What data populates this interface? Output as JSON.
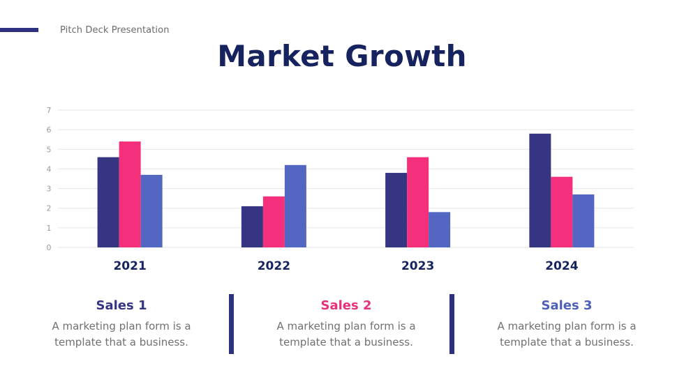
{
  "header": {
    "subtitle": "Pitch Deck Presentation",
    "title": "Market Growth"
  },
  "colors": {
    "accent": "#2e3080",
    "title": "#16235e",
    "series1": "#353582",
    "series2": "#f42f7b",
    "series3": "#5266c2"
  },
  "chart_data": {
    "type": "bar",
    "title": "Market Growth",
    "xlabel": "",
    "ylabel": "",
    "ylim": [
      0,
      7
    ],
    "yticks": [
      0,
      1,
      2,
      3,
      4,
      5,
      6,
      7
    ],
    "grid": true,
    "categories": [
      "2021",
      "2022",
      "2023",
      "2024"
    ],
    "series": [
      {
        "name": "Sales 1",
        "color": "#353582",
        "values": [
          4.6,
          2.1,
          3.8,
          5.8
        ]
      },
      {
        "name": "Sales 2",
        "color": "#f42f7b",
        "values": [
          5.4,
          2.6,
          4.6,
          3.6
        ]
      },
      {
        "name": "Sales 3",
        "color": "#5266c2",
        "values": [
          3.7,
          4.2,
          1.8,
          2.7
        ]
      }
    ]
  },
  "cards": [
    {
      "title": "Sales 1",
      "color": "#353582",
      "text_line1": "A marketing plan form is a",
      "text_line2": "template that a business."
    },
    {
      "title": "Sales 2",
      "color": "#e7317a",
      "text_line1": "A marketing plan form is a",
      "text_line2": "template that a business."
    },
    {
      "title": "Sales 3",
      "color": "#4d5fb8",
      "text_line1": "A marketing plan form is a",
      "text_line2": "template that a business."
    }
  ]
}
